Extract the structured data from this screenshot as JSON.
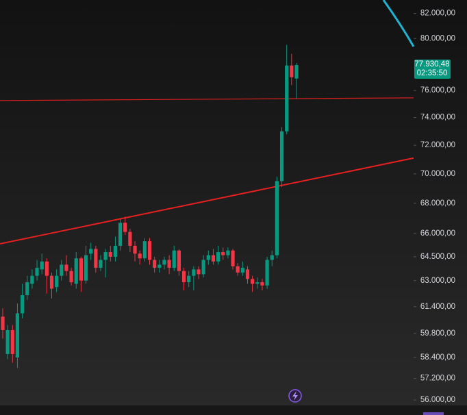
{
  "chart_data": {
    "type": "candlestick",
    "log_scale": true,
    "up_color": "#089981",
    "down_color": "#f23645",
    "ylim": [
      55700,
      83100
    ],
    "yticks": [
      {
        "value": 82000,
        "label": "82.000,00"
      },
      {
        "value": 80000,
        "label": "80.000,00"
      },
      {
        "value": 76000,
        "label": "76.000,00"
      },
      {
        "value": 74000,
        "label": "74.000,00"
      },
      {
        "value": 72000,
        "label": "72.000,00"
      },
      {
        "value": 70000,
        "label": "70.000,00"
      },
      {
        "value": 68000,
        "label": "68.000,00"
      },
      {
        "value": 66000,
        "label": "66.000,00"
      },
      {
        "value": 64500,
        "label": "64.500,00"
      },
      {
        "value": 63000,
        "label": "63.000,00"
      },
      {
        "value": 61400,
        "label": "61.400,00"
      },
      {
        "value": 59800,
        "label": "59.800,00"
      },
      {
        "value": 58400,
        "label": "58.400,00"
      },
      {
        "value": 57200,
        "label": "57.200,00"
      },
      {
        "value": 56000,
        "label": "56.000,00"
      }
    ],
    "open": [
      60800,
      58600,
      60000,
      58400,
      61000,
      62100,
      62800,
      63300,
      63700,
      64200,
      63300,
      62600,
      63300,
      64000,
      63600,
      62800,
      64400,
      63000,
      64700,
      65000,
      63800,
      64300,
      64800,
      64500,
      65200,
      66700,
      66100,
      65200,
      64700,
      64400,
      65500,
      64300,
      63800,
      64000,
      64300,
      63800,
      64900,
      63600,
      62900,
      63300,
      63700,
      63400,
      64300,
      64600,
      64200,
      64800,
      64600,
      64900,
      63900,
      63500,
      63700,
      63100,
      62800,
      62900,
      62700,
      64300,
      64600,
      69500,
      73000,
      77900,
      76900
    ],
    "high": [
      61300,
      60300,
      60300,
      61600,
      62800,
      63300,
      63700,
      64300,
      64700,
      64400,
      63500,
      63700,
      64300,
      64600,
      63800,
      64800,
      64500,
      65200,
      65400,
      65200,
      64600,
      65000,
      65200,
      65800,
      67000,
      67100,
      66300,
      65500,
      64900,
      65700,
      65700,
      64500,
      64300,
      64500,
      64600,
      65200,
      65000,
      63800,
      63600,
      63900,
      63900,
      64600,
      64900,
      65000,
      65200,
      65100,
      65100,
      65000,
      64100,
      64200,
      63900,
      63300,
      63200,
      63100,
      64500,
      64900,
      69800,
      73300,
      79500,
      78800,
      78100
    ],
    "low": [
      59500,
      58300,
      58100,
      57800,
      60700,
      61800,
      62500,
      63000,
      63400,
      62200,
      61900,
      62300,
      63000,
      63300,
      62700,
      62500,
      62300,
      62800,
      64300,
      63500,
      63600,
      63200,
      64200,
      64200,
      64900,
      65900,
      64800,
      64200,
      64000,
      64200,
      64000,
      63500,
      63500,
      63700,
      63400,
      63600,
      63300,
      62400,
      62600,
      62400,
      63100,
      63200,
      64000,
      64000,
      64000,
      64300,
      64400,
      63700,
      63300,
      63300,
      62800,
      62300,
      62500,
      62400,
      62500,
      63900,
      64400,
      69100,
      72800,
      76400,
      75400
    ],
    "close": [
      60000,
      60000,
      58600,
      61000,
      62100,
      62900,
      63300,
      63800,
      64200,
      63300,
      62500,
      63300,
      64000,
      63600,
      62900,
      64400,
      63000,
      64600,
      65000,
      63800,
      64300,
      64800,
      64500,
      65200,
      66700,
      66100,
      65200,
      64700,
      64400,
      65500,
      64300,
      63800,
      64000,
      64300,
      63800,
      64900,
      63600,
      62900,
      63300,
      63700,
      63400,
      64300,
      64600,
      64200,
      64800,
      64600,
      64900,
      63900,
      63500,
      63800,
      63100,
      62800,
      62900,
      62700,
      64300,
      64600,
      69500,
      73000,
      77900,
      77000,
      77930.48
    ],
    "trendlines": [
      {
        "color": "#d91e1e",
        "values": [
          75250,
          75450
        ]
      },
      {
        "color": "#e62020",
        "values": [
          65330,
          71100
        ]
      }
    ],
    "last_price": {
      "value": 77930.48,
      "label": "77.930,48"
    },
    "countdown": "02:35:50"
  }
}
